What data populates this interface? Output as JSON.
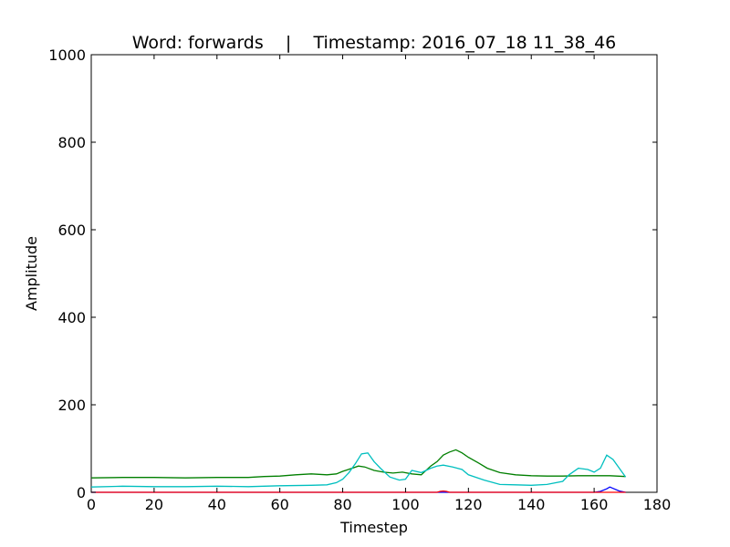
{
  "chart_data": {
    "type": "line",
    "title": "Word: forwards    |    Timestamp: 2016_07_18 11_38_46",
    "xlabel": "Timestep",
    "ylabel": "Amplitude",
    "xlim": [
      0,
      180
    ],
    "ylim": [
      0,
      1000
    ],
    "xticks": [
      0,
      20,
      40,
      60,
      80,
      100,
      120,
      140,
      160,
      180
    ],
    "yticks": [
      0,
      200,
      400,
      600,
      800,
      1000
    ],
    "grid": false,
    "series": [
      {
        "color": "#007f00",
        "x": [
          0,
          10,
          20,
          30,
          40,
          50,
          55,
          60,
          65,
          70,
          75,
          78,
          80,
          83,
          85,
          87,
          90,
          93,
          96,
          99,
          102,
          105,
          108,
          110,
          112,
          114,
          116,
          118,
          120,
          123,
          126,
          130,
          135,
          140,
          145,
          150,
          155,
          160,
          165,
          170
        ],
        "y": [
          33,
          34,
          34,
          33,
          34,
          34,
          36,
          37,
          40,
          42,
          40,
          42,
          48,
          55,
          60,
          58,
          50,
          46,
          44,
          46,
          42,
          40,
          60,
          70,
          85,
          92,
          97,
          90,
          80,
          68,
          55,
          45,
          40,
          38,
          37,
          37,
          38,
          38,
          38,
          36
        ]
      },
      {
        "color": "#00bfbf",
        "x": [
          0,
          10,
          20,
          30,
          40,
          50,
          60,
          70,
          75,
          78,
          80,
          82,
          84,
          86,
          88,
          90,
          92,
          95,
          98,
          100,
          102,
          105,
          108,
          110,
          112,
          115,
          118,
          120,
          125,
          130,
          135,
          140,
          145,
          150,
          152,
          155,
          158,
          160,
          162,
          164,
          166,
          168,
          170
        ],
        "y": [
          12,
          14,
          13,
          13,
          14,
          13,
          15,
          16,
          17,
          22,
          30,
          45,
          65,
          88,
          90,
          70,
          55,
          35,
          28,
          30,
          50,
          45,
          55,
          60,
          62,
          58,
          52,
          40,
          28,
          18,
          17,
          16,
          18,
          25,
          40,
          55,
          52,
          46,
          55,
          85,
          75,
          55,
          35
        ]
      },
      {
        "color": "#0000ff",
        "x": [
          0,
          160,
          162,
          164,
          165,
          166,
          168,
          170
        ],
        "y": [
          0,
          0,
          2,
          8,
          12,
          9,
          3,
          0
        ]
      },
      {
        "color": "#ff0000",
        "x": [
          0,
          110,
          111,
          112,
          113,
          114,
          170
        ],
        "y": [
          0,
          0,
          2,
          3,
          2,
          0,
          0
        ]
      }
    ]
  }
}
